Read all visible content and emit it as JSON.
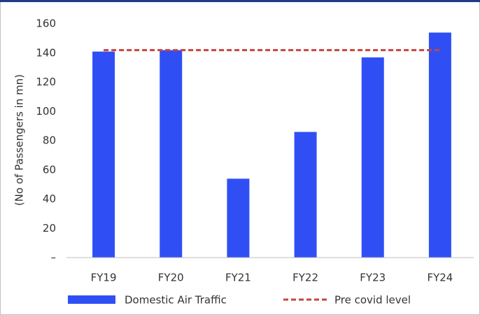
{
  "chart_data": {
    "type": "bar",
    "y_label": "(No of Passengers in mn)",
    "categories": [
      "FY19",
      "FY20",
      "FY21",
      "FY22",
      "FY23",
      "FY24"
    ],
    "series": [
      {
        "name": "Domestic Air Traffic",
        "type": "bar",
        "color": "#2f4ff5",
        "values": [
          141,
          142,
          54,
          86,
          137,
          154
        ]
      },
      {
        "name": "Pre covid level",
        "type": "line",
        "dashed": true,
        "color": "#c9433f",
        "values": [
          142,
          142,
          142,
          142,
          142,
          142
        ]
      }
    ],
    "ylim": [
      0,
      160
    ],
    "yticks": [
      {
        "value": 0,
        "label": "–"
      },
      20,
      40,
      60,
      80,
      100,
      120,
      140,
      160
    ],
    "grid": false,
    "legend": "bottom"
  }
}
